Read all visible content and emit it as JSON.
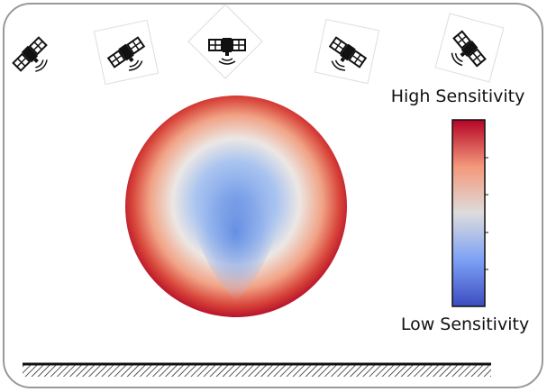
{
  "labels": {
    "high": "High Sensitivity",
    "low": "Low Sensitivity"
  }
}
